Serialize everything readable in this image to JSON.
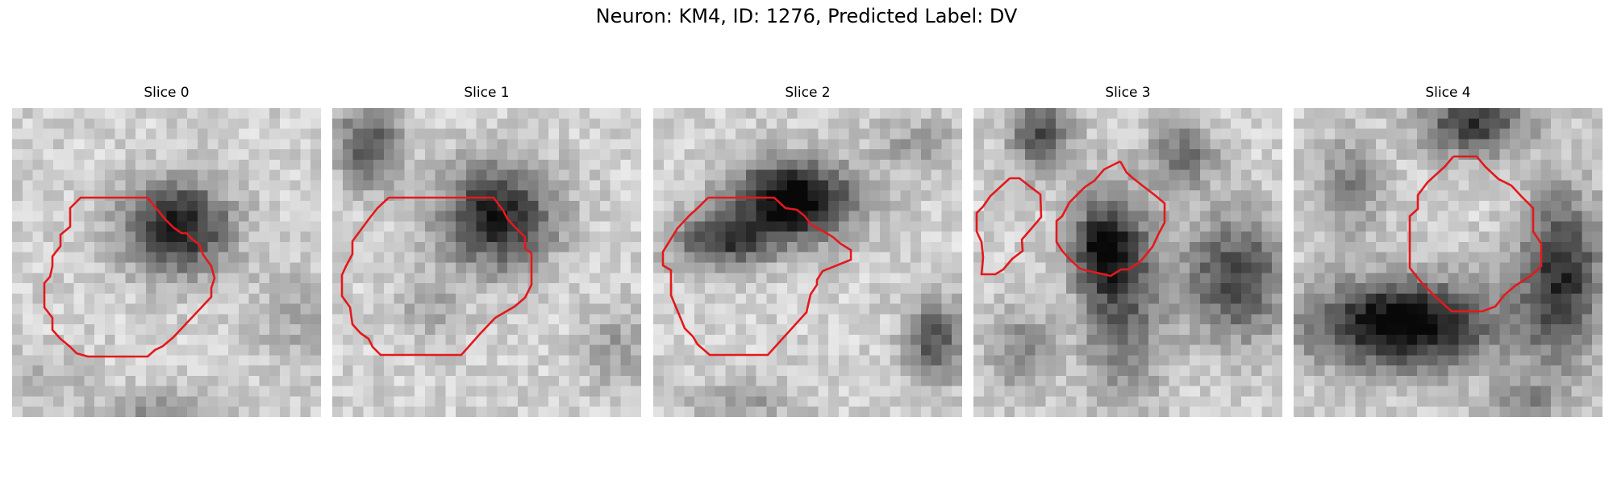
{
  "figure": {
    "title": "Neuron: KM4, ID: 1276, Predicted Label: DV",
    "contour_color": "#e3191c"
  },
  "panels": [
    {
      "title": "Slice 0"
    },
    {
      "title": "Slice 1"
    },
    {
      "title": "Slice 2"
    },
    {
      "title": "Slice 3"
    },
    {
      "title": "Slice 4"
    }
  ]
}
